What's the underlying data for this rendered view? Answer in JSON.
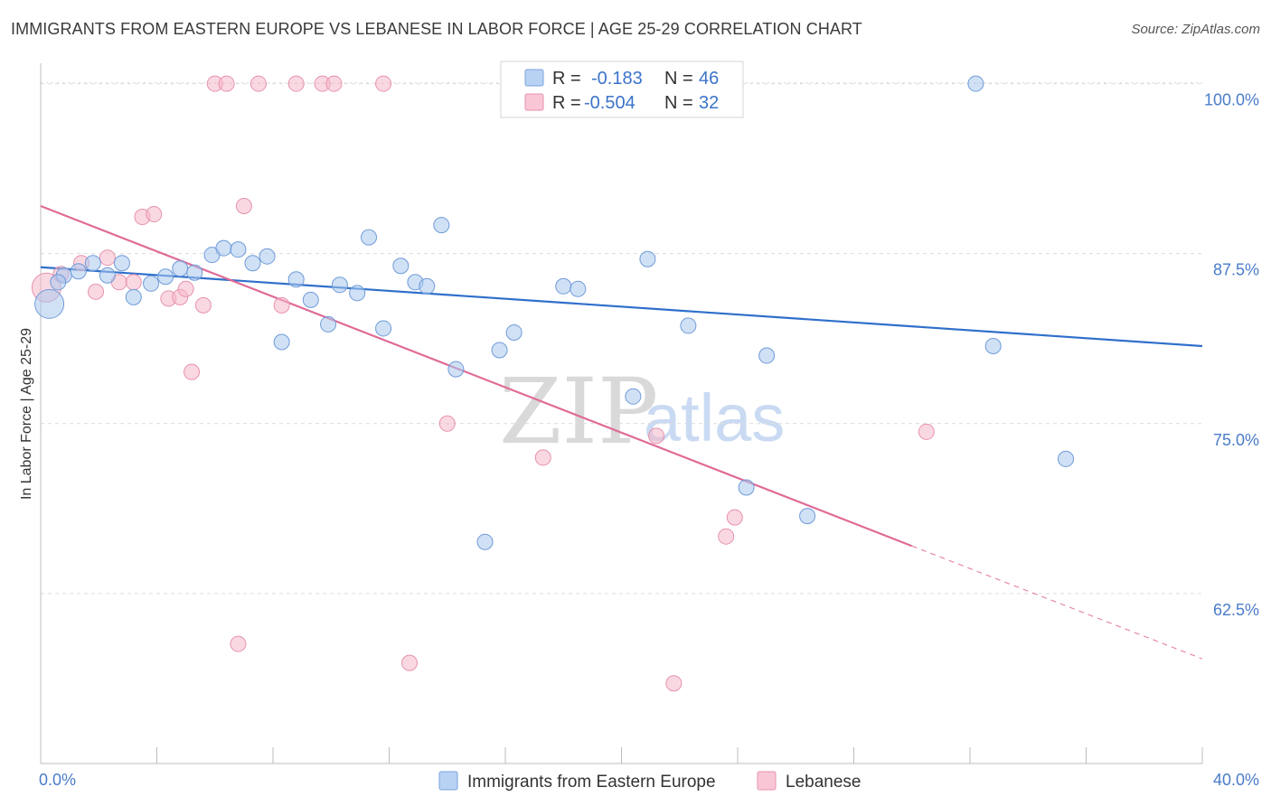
{
  "title": "IMMIGRANTS FROM EASTERN EUROPE VS LEBANESE IN LABOR FORCE | AGE 25-29 CORRELATION CHART",
  "source": "Source: ZipAtlas.com",
  "watermark": {
    "zip": "ZIP",
    "atlas": "atlas"
  },
  "colors": {
    "blue_fill": "#a9c8ef",
    "blue_stroke": "#6f9bd8",
    "blue_line": "#2f6fcb",
    "pink_fill": "#f5b8cb",
    "pink_stroke": "#e792ad",
    "pink_line": "#e06b97",
    "grid": "#dcdcdc",
    "tick_text": "#4a7cc9"
  },
  "legend": {
    "series": [
      {
        "r_label": "R =",
        "r_value": "-0.183",
        "n_label": "N =",
        "n_value": "46"
      },
      {
        "r_label": "R =",
        "r_value": "-0.504",
        "n_label": "N =",
        "n_value": "32"
      }
    ]
  },
  "chart_data": {
    "type": "scatter",
    "title": "IMMIGRANTS FROM EASTERN EUROPE VS LEBANESE IN LABOR FORCE | AGE 25-29 CORRELATION CHART",
    "xlabel": "",
    "ylabel": "In Labor Force | Age 25-29",
    "xlim": [
      0,
      40
    ],
    "ylim": [
      50,
      101.5
    ],
    "x_tick_labels": [
      "0.0%",
      "40.0%"
    ],
    "y_ticks": [
      62.5,
      75.0,
      87.5,
      100.0
    ],
    "y_tick_labels": [
      "62.5%",
      "75.0%",
      "87.5%",
      "100.0%"
    ],
    "grid": true,
    "legend_position": "top-center",
    "series": [
      {
        "name": "Immigrants from Eastern Europe",
        "color": "#a9c8ef",
        "trend": {
          "x": [
            0,
            40
          ],
          "y": [
            86.5,
            80.7
          ]
        },
        "points": [
          {
            "x": 0.3,
            "y": 83.8,
            "size": "large"
          },
          {
            "x": 0.8,
            "y": 85.9
          },
          {
            "x": 1.3,
            "y": 86.2
          },
          {
            "x": 1.8,
            "y": 86.8
          },
          {
            "x": 2.3,
            "y": 85.9
          },
          {
            "x": 2.8,
            "y": 86.8
          },
          {
            "x": 3.2,
            "y": 84.3
          },
          {
            "x": 3.8,
            "y": 85.3
          },
          {
            "x": 4.3,
            "y": 85.8
          },
          {
            "x": 4.8,
            "y": 86.4
          },
          {
            "x": 5.3,
            "y": 86.1
          },
          {
            "x": 5.9,
            "y": 87.4
          },
          {
            "x": 6.3,
            "y": 87.9
          },
          {
            "x": 6.8,
            "y": 87.8
          },
          {
            "x": 7.3,
            "y": 86.8
          },
          {
            "x": 7.8,
            "y": 87.3
          },
          {
            "x": 8.3,
            "y": 81.0
          },
          {
            "x": 8.8,
            "y": 85.6
          },
          {
            "x": 9.3,
            "y": 84.1
          },
          {
            "x": 9.9,
            "y": 82.3
          },
          {
            "x": 10.3,
            "y": 85.2
          },
          {
            "x": 10.9,
            "y": 84.6
          },
          {
            "x": 11.3,
            "y": 88.7
          },
          {
            "x": 11.8,
            "y": 82.0
          },
          {
            "x": 12.4,
            "y": 86.6
          },
          {
            "x": 12.9,
            "y": 85.4
          },
          {
            "x": 13.3,
            "y": 85.1
          },
          {
            "x": 13.8,
            "y": 89.6
          },
          {
            "x": 14.3,
            "y": 79.0
          },
          {
            "x": 15.3,
            "y": 66.3
          },
          {
            "x": 15.8,
            "y": 80.4
          },
          {
            "x": 16.3,
            "y": 81.7
          },
          {
            "x": 18.0,
            "y": 85.1
          },
          {
            "x": 18.5,
            "y": 84.9
          },
          {
            "x": 19.2,
            "y": 100.0
          },
          {
            "x": 20.4,
            "y": 77.0
          },
          {
            "x": 20.9,
            "y": 87.1
          },
          {
            "x": 21.0,
            "y": 100.0
          },
          {
            "x": 22.3,
            "y": 82.2
          },
          {
            "x": 24.3,
            "y": 70.3
          },
          {
            "x": 25.0,
            "y": 80.0
          },
          {
            "x": 26.4,
            "y": 68.2
          },
          {
            "x": 32.2,
            "y": 100.0
          },
          {
            "x": 32.8,
            "y": 80.7
          },
          {
            "x": 35.3,
            "y": 72.4
          },
          {
            "x": 0.6,
            "y": 85.4
          }
        ]
      },
      {
        "name": "Lebanese",
        "color": "#f5b8cb",
        "trend": {
          "x": [
            0,
            30
          ],
          "y": [
            91.0,
            66.0
          ]
        },
        "trend_dashed": {
          "x": [
            30,
            40
          ],
          "y": [
            66.0,
            57.7
          ]
        },
        "points": [
          {
            "x": 0.2,
            "y": 85.0,
            "size": "large"
          },
          {
            "x": 0.7,
            "y": 86.0
          },
          {
            "x": 1.4,
            "y": 86.8
          },
          {
            "x": 1.9,
            "y": 84.7
          },
          {
            "x": 2.3,
            "y": 87.2
          },
          {
            "x": 2.7,
            "y": 85.4
          },
          {
            "x": 3.2,
            "y": 85.4
          },
          {
            "x": 3.5,
            "y": 90.2
          },
          {
            "x": 3.9,
            "y": 90.4
          },
          {
            "x": 4.4,
            "y": 84.2
          },
          {
            "x": 4.8,
            "y": 84.3
          },
          {
            "x": 5.2,
            "y": 78.8
          },
          {
            "x": 5.6,
            "y": 83.7
          },
          {
            "x": 6.0,
            "y": 100.0
          },
          {
            "x": 6.4,
            "y": 100.0
          },
          {
            "x": 6.8,
            "y": 58.8
          },
          {
            "x": 7.0,
            "y": 91.0
          },
          {
            "x": 7.5,
            "y": 100.0
          },
          {
            "x": 8.3,
            "y": 83.7
          },
          {
            "x": 8.8,
            "y": 100.0
          },
          {
            "x": 9.7,
            "y": 100.0
          },
          {
            "x": 10.1,
            "y": 100.0
          },
          {
            "x": 11.8,
            "y": 100.0
          },
          {
            "x": 12.7,
            "y": 57.4
          },
          {
            "x": 14.0,
            "y": 75.0
          },
          {
            "x": 17.3,
            "y": 72.5
          },
          {
            "x": 21.2,
            "y": 74.1
          },
          {
            "x": 21.8,
            "y": 55.9
          },
          {
            "x": 23.6,
            "y": 66.7
          },
          {
            "x": 23.9,
            "y": 68.1
          },
          {
            "x": 30.5,
            "y": 74.4
          },
          {
            "x": 5.0,
            "y": 84.9
          }
        ]
      }
    ]
  }
}
